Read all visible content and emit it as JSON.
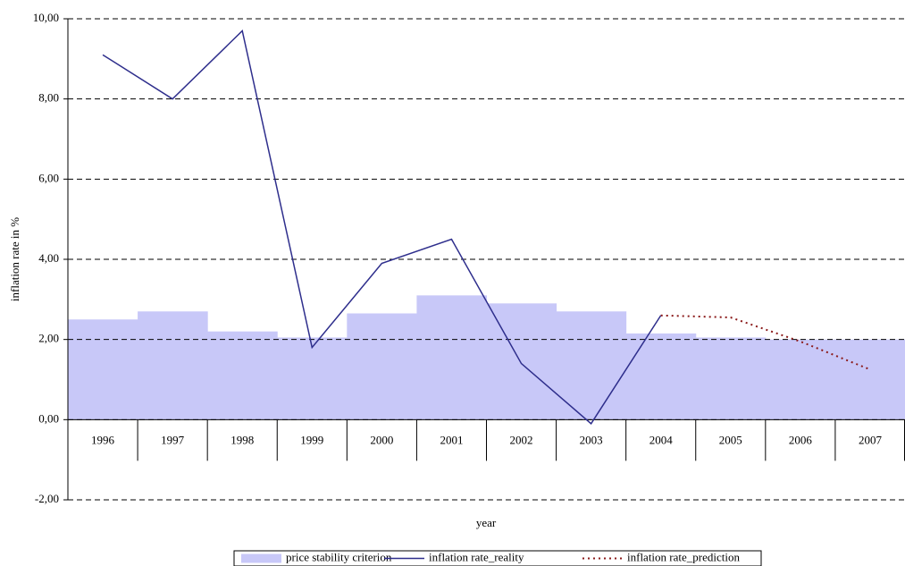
{
  "chart_data": {
    "type": "line",
    "x_label": "year",
    "y_label": "inflation rate in %",
    "categories": [
      "1996",
      "1997",
      "1998",
      "1999",
      "2000",
      "2001",
      "2002",
      "2003",
      "2004",
      "2005",
      "2006",
      "2007"
    ],
    "series": [
      {
        "name": "price stability criterion",
        "type": "area",
        "color": "#c8c8f8",
        "values": [
          2.5,
          2.7,
          2.2,
          2.05,
          2.65,
          3.1,
          2.9,
          2.7,
          2.15,
          2.05,
          2.0,
          2.0
        ]
      },
      {
        "name": "inflation rate_reality",
        "type": "line",
        "color": "#2e2e8c",
        "dashed": false,
        "values": [
          9.1,
          8.0,
          9.7,
          1.8,
          3.9,
          4.5,
          1.4,
          -0.1,
          2.6,
          null,
          null,
          null
        ]
      },
      {
        "name": "inflation rate_prediction",
        "type": "line",
        "color": "#8b1a1a",
        "dashed": true,
        "values": [
          null,
          null,
          null,
          null,
          null,
          null,
          null,
          null,
          2.6,
          2.55,
          1.95,
          1.25
        ]
      }
    ],
    "ylim": [
      -2,
      10
    ],
    "yticks": [
      {
        "value": -2,
        "label": "-2,00"
      },
      {
        "value": 0,
        "label": "0,00"
      },
      {
        "value": 2,
        "label": "2,00"
      },
      {
        "value": 4,
        "label": "4,00"
      },
      {
        "value": 6,
        "label": "6,00"
      },
      {
        "value": 8,
        "label": "8,00"
      },
      {
        "value": 10,
        "label": "10,00"
      }
    ],
    "grid": true,
    "legend": "bottom"
  }
}
